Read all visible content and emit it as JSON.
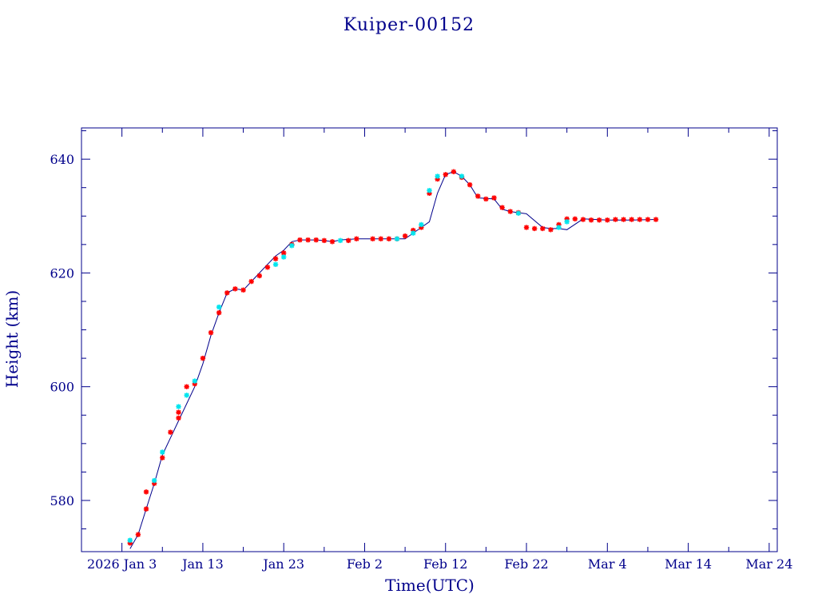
{
  "chart_data": {
    "type": "scatter",
    "title": "Kuiper-00152",
    "xlabel": "Time(UTC)",
    "ylabel": "Height (km)",
    "x_ticks": [
      "2026 Jan  3",
      "Jan 13",
      "Jan 23",
      "Feb  2",
      "Feb 12",
      "Feb 22",
      "Mar  4",
      "Mar 14",
      "Mar 24"
    ],
    "x_tick_dates": [
      "2026-01-03",
      "2026-01-13",
      "2026-01-23",
      "2026-02-02",
      "2026-02-12",
      "2026-02-22",
      "2026-03-04",
      "2026-03-14",
      "2026-03-24"
    ],
    "xlim": [
      "2025-12-29",
      "2026-03-25"
    ],
    "y_ticks": [
      580,
      600,
      620,
      640
    ],
    "ylim": [
      571,
      645.5
    ],
    "grid": false,
    "colors": {
      "axes": "#00008b",
      "line": "#00008b",
      "series_a": "#ff0000",
      "series_b": "#00e5ee"
    },
    "line": {
      "x": [
        "2026-01-04",
        "2026-01-05",
        "2026-01-06",
        "2026-01-07",
        "2026-01-08",
        "2026-01-09",
        "2026-01-10",
        "2026-01-11",
        "2026-01-12",
        "2026-01-13",
        "2026-01-14",
        "2026-01-15",
        "2026-01-16",
        "2026-01-17",
        "2026-01-18",
        "2026-01-19",
        "2026-01-20",
        "2026-01-21",
        "2026-01-22",
        "2026-01-23",
        "2026-01-24",
        "2026-01-25",
        "2026-01-26",
        "2026-01-27",
        "2026-01-28",
        "2026-01-29",
        "2026-01-30",
        "2026-02-01",
        "2026-02-03",
        "2026-02-05",
        "2026-02-07",
        "2026-02-08",
        "2026-02-09",
        "2026-02-10",
        "2026-02-11",
        "2026-02-12",
        "2026-02-13",
        "2026-02-14",
        "2026-02-15",
        "2026-02-16",
        "2026-02-18",
        "2026-02-19",
        "2026-02-20",
        "2026-02-21",
        "2026-02-22",
        "2026-02-24",
        "2026-02-25",
        "2026-02-26",
        "2026-02-27",
        "2026-03-01",
        "2026-03-04",
        "2026-03-07",
        "2026-03-10"
      ],
      "y": [
        571.5,
        574,
        578.5,
        583,
        588,
        591,
        594,
        597,
        600,
        604,
        609,
        613,
        616.5,
        617.2,
        617,
        618.5,
        620,
        621.5,
        623,
        624,
        625.5,
        625.8,
        625.8,
        625.8,
        625.7,
        625.5,
        625.8,
        626,
        626,
        626,
        626,
        627,
        628,
        629,
        634,
        637.3,
        637.8,
        637,
        635.5,
        633.2,
        633,
        631.2,
        630.8,
        630.6,
        630.4,
        628,
        627.8,
        627.8,
        627.6,
        629.5,
        629.3,
        629.3,
        629.4
      ]
    },
    "series": [
      {
        "values": [
          {
            "x": "2026-01-04",
            "y": 572.5
          },
          {
            "x": "2026-01-05",
            "y": 574.0
          },
          {
            "x": "2026-01-06",
            "y": 578.5
          },
          {
            "x": "2026-01-06",
            "y": 581.5
          },
          {
            "x": "2026-01-07",
            "y": 583.0
          },
          {
            "x": "2026-01-08",
            "y": 587.5
          },
          {
            "x": "2026-01-09",
            "y": 592.0
          },
          {
            "x": "2026-01-10",
            "y": 594.5
          },
          {
            "x": "2026-01-10",
            "y": 595.5
          },
          {
            "x": "2026-01-11",
            "y": 600.0
          },
          {
            "x": "2026-01-12",
            "y": 600.5
          },
          {
            "x": "2026-01-13",
            "y": 605.0
          },
          {
            "x": "2026-01-14",
            "y": 609.5
          },
          {
            "x": "2026-01-15",
            "y": 613.0
          },
          {
            "x": "2026-01-16",
            "y": 616.5
          },
          {
            "x": "2026-01-17",
            "y": 617.2
          },
          {
            "x": "2026-01-18",
            "y": 617.0
          },
          {
            "x": "2026-01-19",
            "y": 618.5
          },
          {
            "x": "2026-01-20",
            "y": 619.5
          },
          {
            "x": "2026-01-21",
            "y": 621.0
          },
          {
            "x": "2026-01-22",
            "y": 622.5
          },
          {
            "x": "2026-01-23",
            "y": 623.5
          },
          {
            "x": "2026-01-24",
            "y": 625.0
          },
          {
            "x": "2026-01-25",
            "y": 625.8
          },
          {
            "x": "2026-01-26",
            "y": 625.8
          },
          {
            "x": "2026-01-27",
            "y": 625.8
          },
          {
            "x": "2026-01-28",
            "y": 625.7
          },
          {
            "x": "2026-01-29",
            "y": 625.5
          },
          {
            "x": "2026-01-31",
            "y": 625.7
          },
          {
            "x": "2026-02-01",
            "y": 626.0
          },
          {
            "x": "2026-02-03",
            "y": 626.0
          },
          {
            "x": "2026-02-04",
            "y": 626.0
          },
          {
            "x": "2026-02-05",
            "y": 626.0
          },
          {
            "x": "2026-02-06",
            "y": 626.0
          },
          {
            "x": "2026-02-07",
            "y": 626.5
          },
          {
            "x": "2026-02-08",
            "y": 627.5
          },
          {
            "x": "2026-02-09",
            "y": 628.0
          },
          {
            "x": "2026-02-10",
            "y": 634.0
          },
          {
            "x": "2026-02-11",
            "y": 636.5
          },
          {
            "x": "2026-02-12",
            "y": 637.3
          },
          {
            "x": "2026-02-13",
            "y": 637.8
          },
          {
            "x": "2026-02-14",
            "y": 636.8
          },
          {
            "x": "2026-02-15",
            "y": 635.5
          },
          {
            "x": "2026-02-16",
            "y": 633.5
          },
          {
            "x": "2026-02-17",
            "y": 633.0
          },
          {
            "x": "2026-02-18",
            "y": 633.2
          },
          {
            "x": "2026-02-19",
            "y": 631.5
          },
          {
            "x": "2026-02-20",
            "y": 630.8
          },
          {
            "x": "2026-02-21",
            "y": 630.6
          },
          {
            "x": "2026-02-22",
            "y": 628.0
          },
          {
            "x": "2026-02-23",
            "y": 627.8
          },
          {
            "x": "2026-02-24",
            "y": 627.8
          },
          {
            "x": "2026-02-25",
            "y": 627.6
          },
          {
            "x": "2026-02-26",
            "y": 628.5
          },
          {
            "x": "2026-02-27",
            "y": 629.5
          },
          {
            "x": "2026-02-28",
            "y": 629.5
          },
          {
            "x": "2026-03-01",
            "y": 629.4
          },
          {
            "x": "2026-03-02",
            "y": 629.3
          },
          {
            "x": "2026-03-03",
            "y": 629.3
          },
          {
            "x": "2026-03-04",
            "y": 629.3
          },
          {
            "x": "2026-03-05",
            "y": 629.4
          },
          {
            "x": "2026-03-06",
            "y": 629.4
          },
          {
            "x": "2026-03-07",
            "y": 629.4
          },
          {
            "x": "2026-03-08",
            "y": 629.4
          },
          {
            "x": "2026-03-09",
            "y": 629.4
          },
          {
            "x": "2026-03-10",
            "y": 629.4
          }
        ]
      },
      {
        "values": [
          {
            "x": "2026-01-04",
            "y": 573.0
          },
          {
            "x": "2026-01-07",
            "y": 583.5
          },
          {
            "x": "2026-01-08",
            "y": 588.5
          },
          {
            "x": "2026-01-10",
            "y": 596.5
          },
          {
            "x": "2026-01-11",
            "y": 598.5
          },
          {
            "x": "2026-01-12",
            "y": 601.0
          },
          {
            "x": "2026-01-15",
            "y": 614.0
          },
          {
            "x": "2026-01-22",
            "y": 621.5
          },
          {
            "x": "2026-01-23",
            "y": 622.8
          },
          {
            "x": "2026-01-24",
            "y": 624.8
          },
          {
            "x": "2026-01-30",
            "y": 625.7
          },
          {
            "x": "2026-02-06",
            "y": 626.0
          },
          {
            "x": "2026-02-08",
            "y": 627.0
          },
          {
            "x": "2026-02-09",
            "y": 628.5
          },
          {
            "x": "2026-02-10",
            "y": 634.5
          },
          {
            "x": "2026-02-11",
            "y": 637.0
          },
          {
            "x": "2026-02-14",
            "y": 637.0
          },
          {
            "x": "2026-02-21",
            "y": 630.5
          },
          {
            "x": "2026-02-26",
            "y": 628.0
          },
          {
            "x": "2026-02-27",
            "y": 629.0
          }
        ]
      }
    ]
  }
}
